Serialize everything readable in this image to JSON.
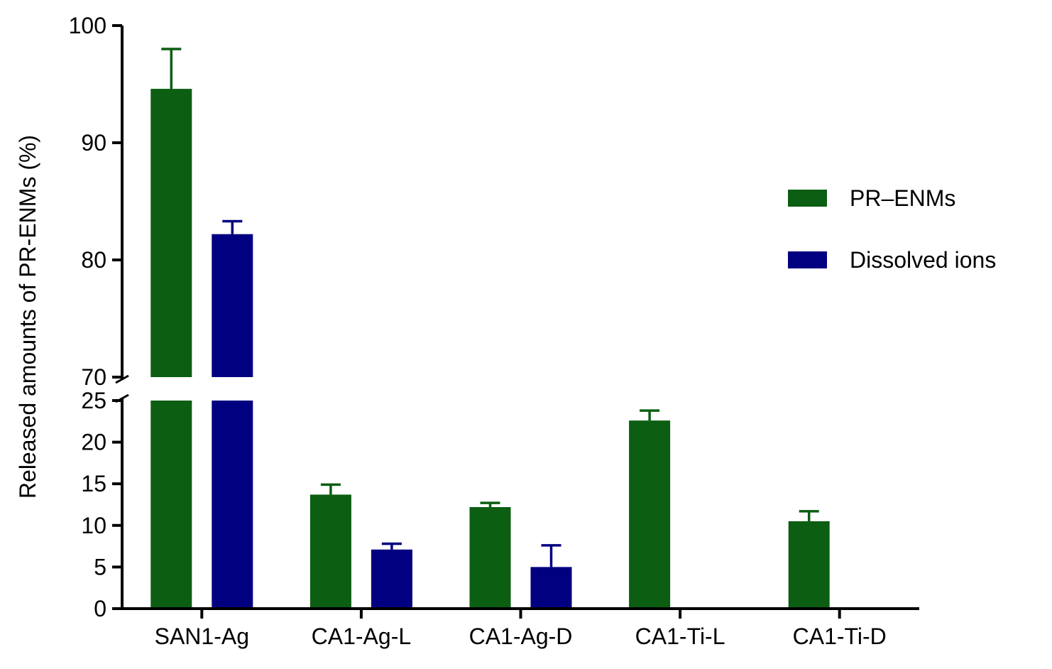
{
  "chart_data": {
    "type": "bar",
    "title": "",
    "xlabel": "",
    "ylabel": "Released amounts of PR-ENMs (%)",
    "categories": [
      "SAN1-Ag",
      "CA1-Ag-L",
      "CA1-Ag-D",
      "CA1-Ti-L",
      "CA1-Ti-D"
    ],
    "series": [
      {
        "name": "PR–ENMs",
        "color": "#0b5e12",
        "values": [
          94.6,
          13.7,
          12.2,
          22.6,
          10.5
        ],
        "errors": [
          3.4,
          1.2,
          0.5,
          1.2,
          1.2
        ]
      },
      {
        "name": "Dissolved ions",
        "color": "#000080",
        "values": [
          82.2,
          7.1,
          5.0,
          null,
          null
        ],
        "errors": [
          1.1,
          0.7,
          2.6,
          null,
          null
        ]
      }
    ],
    "y_axis_break": {
      "lower_range": [
        0,
        25
      ],
      "upper_range": [
        70,
        100
      ],
      "lower_ticks": [
        "0",
        "5",
        "10",
        "15",
        "20",
        "25"
      ],
      "upper_ticks": [
        "70",
        "80",
        "90",
        "100"
      ]
    },
    "grid": false,
    "legend": {
      "placement": "right"
    }
  }
}
